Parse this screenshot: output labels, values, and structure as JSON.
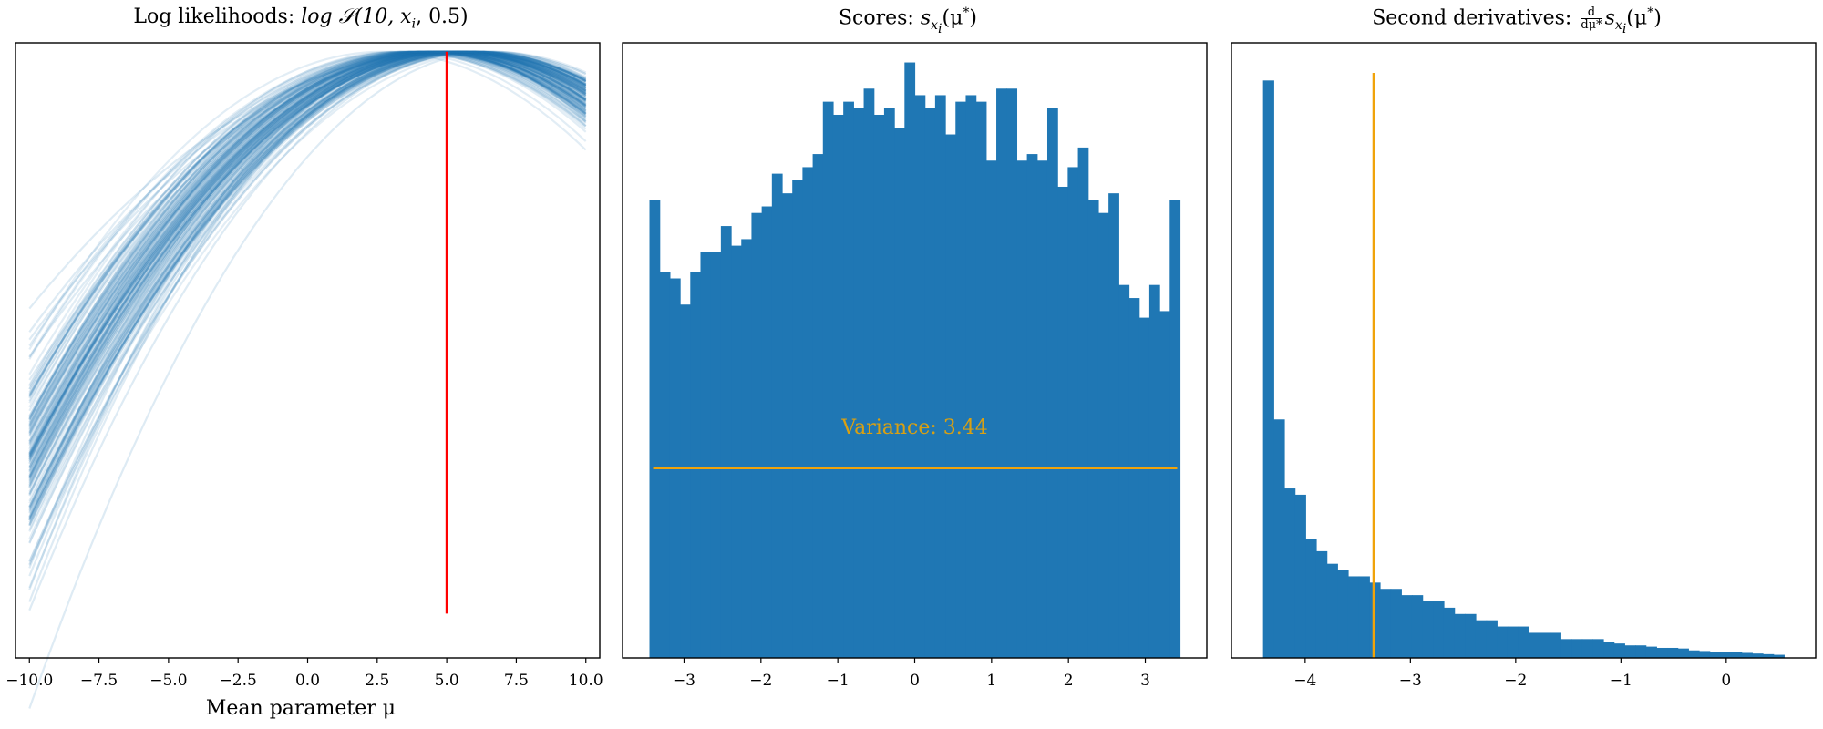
{
  "titles": {
    "left": {
      "prefix": "Log likelihoods: ",
      "math": "log 𝒮(10, x",
      "sub": "i",
      "suffix": ", 0.5)"
    },
    "middle": {
      "prefix": "Scores: ",
      "math": "s",
      "sub": "x",
      "subsub": "i",
      "suffix": "(μ",
      "sup": "*",
      "tail": ")"
    },
    "right": {
      "prefix": "Second derivatives: ",
      "frac_num": "d",
      "frac_den": "dμ*",
      "math": "s",
      "sub": "x",
      "subsub": "i",
      "suffix": "(μ",
      "sup": "*",
      "tail": ")"
    }
  },
  "xlabel_left": "Mean parameter μ",
  "annotation": "Variance: 3.44",
  "colors": {
    "blue": "#1f77b4",
    "red": "#ff0000",
    "orange": "#f0a30a",
    "annot_text": "#d9a012"
  },
  "chart_data": [
    {
      "type": "line",
      "title": "Log likelihoods: log 𝒮(10, x_i, 0.5)",
      "xlabel": "Mean parameter μ",
      "ylabel": "",
      "xlim": [
        -10.5,
        10.5
      ],
      "xticks": [
        -10.0,
        -7.5,
        -5.0,
        -2.5,
        0.0,
        2.5,
        5.0,
        7.5,
        10.0
      ],
      "yticks_visible": false,
      "curve_family": "many translucent curves of log-likelihood versus μ, each peaking near μ = 5",
      "vline": {
        "x": 5.0,
        "color": "red"
      }
    },
    {
      "type": "bar",
      "title": "Scores: s_{x_i}(μ*)",
      "xlim": [
        -3.8,
        3.8
      ],
      "xticks": [
        -3,
        -2,
        -1,
        0,
        1,
        2,
        3
      ],
      "bin_range": [
        -3.45,
        3.45
      ],
      "counts": [
        70,
        59,
        58,
        54,
        59,
        62,
        62,
        66,
        63,
        64,
        68,
        69,
        74,
        71,
        73,
        75,
        77,
        85,
        83,
        85,
        84,
        87,
        83,
        84,
        81,
        91,
        86,
        84,
        86,
        80,
        85,
        86,
        85,
        76,
        87,
        87,
        76,
        77,
        76,
        84,
        72,
        75,
        78,
        70,
        68,
        71,
        57,
        55,
        52,
        57,
        53,
        70
      ],
      "hline": {
        "y": 29,
        "label": "Variance: 3.44",
        "color": "orange"
      },
      "ylim": [
        0,
        94
      ],
      "yticks_visible": false
    },
    {
      "type": "bar",
      "title": "Second derivatives: d/dμ* s_{x_i}(μ*)",
      "xlim": [
        -4.7,
        0.85
      ],
      "xticks": [
        -4,
        -3,
        -2,
        -1,
        0
      ],
      "bin_range": [
        -4.4,
        0.55
      ],
      "counts": [
        92,
        38,
        27,
        26,
        19,
        17,
        15,
        14,
        13,
        13,
        12,
        11,
        11,
        10,
        10,
        9,
        9,
        8,
        7,
        7,
        6,
        6,
        5,
        5,
        5,
        4,
        4,
        4,
        3,
        3,
        3,
        3,
        2.5,
        2.3,
        2,
        2,
        1.8,
        1.6,
        1.6,
        1.5,
        1.2,
        1.1,
        1.0,
        1.0,
        0.9,
        0.8,
        0.7,
        0.6,
        0.5
      ],
      "vline": {
        "x": -3.35,
        "color": "orange"
      },
      "ylim": [
        0,
        98
      ],
      "yticks_visible": false
    }
  ]
}
